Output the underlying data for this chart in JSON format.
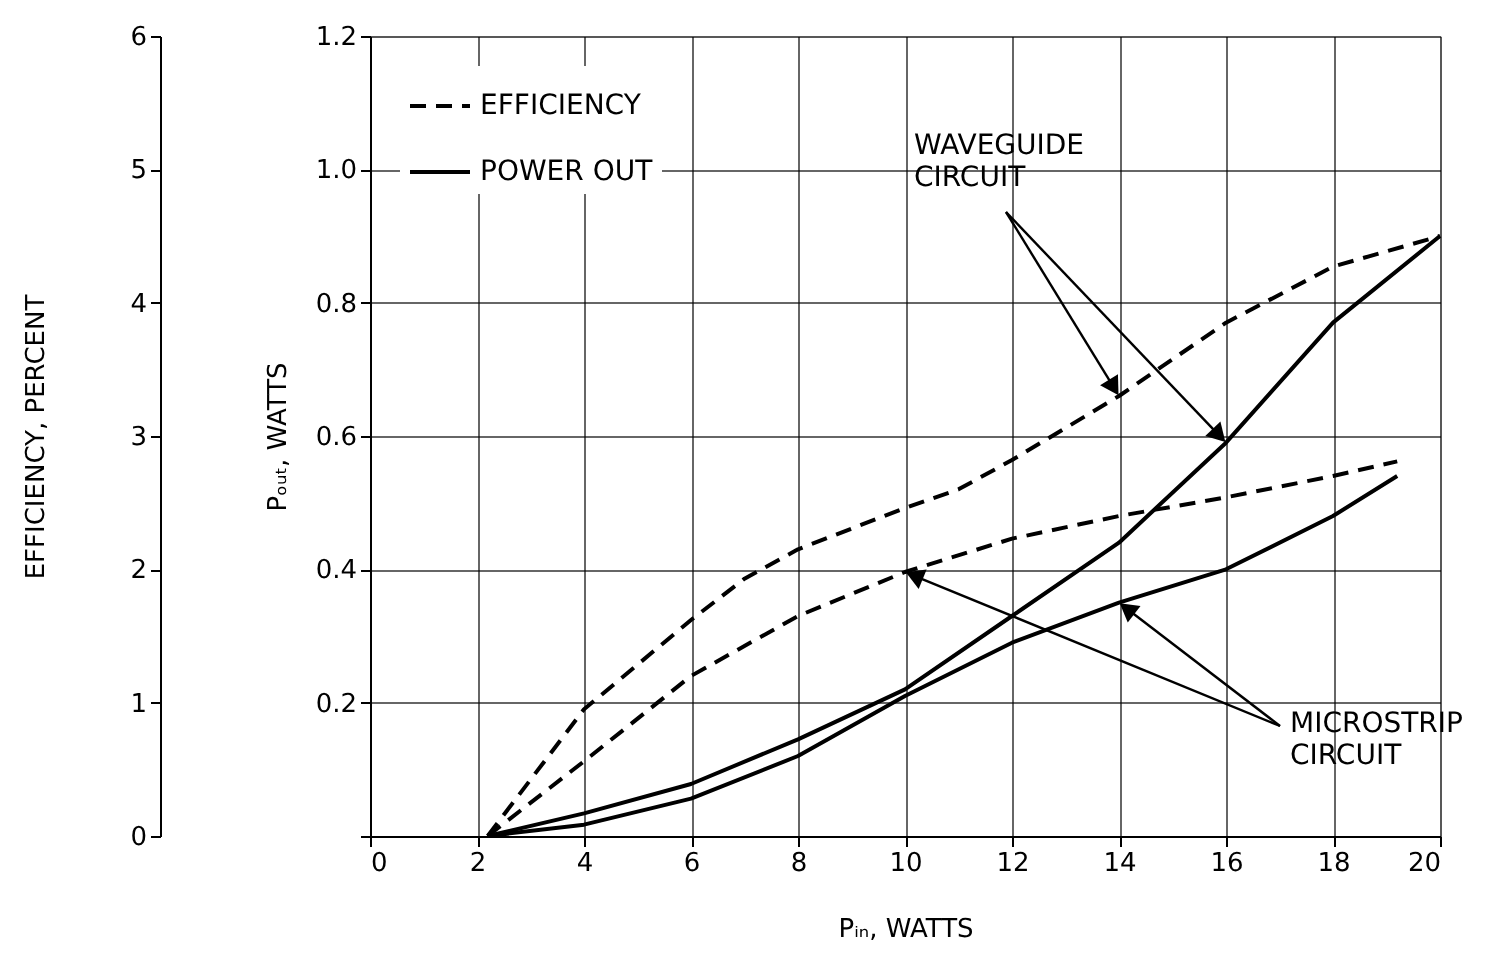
{
  "chart_data": {
    "type": "line",
    "xlabel": "Pᵢₙ, WATTS",
    "ylabel": "Pₒᵤₜ, WATTS",
    "y2label": "EFFICIENCY, PERCENT",
    "series": [
      {
        "name": "EFFICIENCY",
        "color": "#000000",
        "axis": "y2",
        "line_style": "dashed",
        "x": [
          2.2,
          4,
          6,
          7,
          8,
          10,
          11,
          12,
          14,
          16,
          18,
          20
        ],
        "values": [
          0,
          0.95,
          1.62,
          1.93,
          2.15,
          2.46,
          2.6,
          2.82,
          3.3,
          3.85,
          4.27,
          4.5
        ]
      },
      {
        "color": "#000000",
        "axis": "y2",
        "line_style": "dashed",
        "x": [
          2.2,
          4,
          6,
          8,
          10,
          12,
          14,
          16,
          18,
          19.2
        ],
        "values": [
          0,
          0.56,
          1.2,
          1.65,
          1.98,
          2.23,
          2.4,
          2.54,
          2.7,
          2.81
        ]
      },
      {
        "name": "POWER OUT",
        "color": "#000000",
        "line_style": "solid",
        "x": [
          2.2,
          4,
          6,
          8,
          10,
          12,
          14,
          16,
          18,
          20
        ],
        "values": [
          0,
          0.034,
          0.078,
          0.145,
          0.22,
          0.33,
          0.44,
          0.59,
          0.77,
          0.9
        ]
      },
      {
        "color": "#000000",
        "line_style": "solid",
        "x": [
          2.2,
          4,
          6,
          8,
          10,
          12,
          14,
          16,
          18,
          19.2
        ],
        "values": [
          0,
          0.017,
          0.056,
          0.12,
          0.21,
          0.29,
          0.35,
          0.4,
          0.48,
          0.54
        ]
      }
    ],
    "xlim": [
      0,
      20
    ],
    "xticks": [
      0,
      2,
      4,
      6,
      8,
      10,
      12,
      14,
      16,
      18,
      20
    ],
    "ylim": [
      0,
      1.2
    ],
    "yticks": [
      {
        "value": 0,
        "label": null
      },
      0.2,
      0.4,
      0.6,
      0.8,
      {
        "value": 1.0,
        "label": "1.0"
      },
      1.2
    ],
    "y2lim": [
      0,
      6
    ],
    "y2ticks": [
      0,
      1,
      2,
      3,
      4,
      5,
      6
    ],
    "annotations": [
      {
        "text": "WAVEGUIDE\nCIRCUIT",
        "x": 14,
        "y": 0.66
      },
      {
        "text": "MICROSTRIP\nCIRCUIT",
        "x": 10,
        "y": 0.396
      }
    ],
    "grid": true,
    "legend": "top left",
    "marker": "none"
  }
}
